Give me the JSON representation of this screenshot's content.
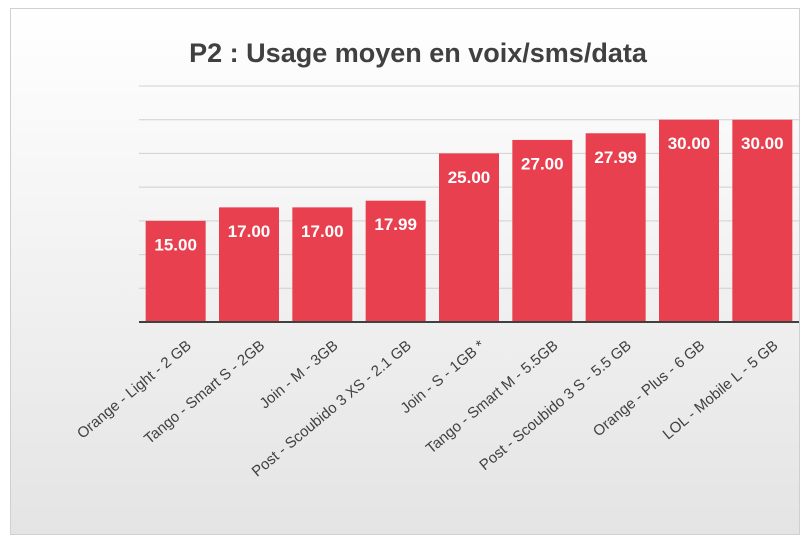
{
  "chart_data": {
    "type": "bar",
    "title": "P2 : Usage moyen en voix/sms/data",
    "categories": [
      "Orange - Light - 2 GB",
      "Tango - Smart S - 2GB",
      "Join - M - 3GB",
      "Post - Scoubido 3 XS - 2.1 GB",
      "Join - S - 1GB *",
      "Tango - Smart M - 5.5GB",
      "Post - Scoubido 3 S - 5.5 GB",
      "Orange - Plus - 6 GB",
      "LOL - Mobile L - 5 GB"
    ],
    "values": [
      15,
      17,
      17,
      17.99,
      25,
      27,
      27.99,
      30,
      30
    ],
    "value_labels": [
      "15.00",
      "17.00",
      "17.00",
      "17.99",
      "25.00",
      "27.00",
      "27.99",
      "30.00",
      "30.00"
    ],
    "color": "#e8404f",
    "ylim": [
      0,
      35
    ],
    "yticks": [
      0,
      5,
      10,
      15,
      20,
      25,
      30,
      35
    ],
    "grid": true
  }
}
